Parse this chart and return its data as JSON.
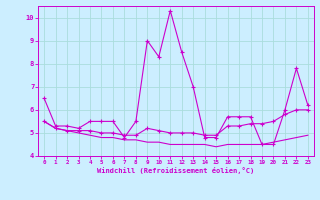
{
  "xlabel": "Windchill (Refroidissement éolien,°C)",
  "background_color": "#cceeff",
  "grid_color": "#aadddd",
  "line_color": "#cc00cc",
  "xlim": [
    -0.5,
    23.5
  ],
  "ylim": [
    4.0,
    10.5
  ],
  "yticks": [
    4,
    5,
    6,
    7,
    8,
    9,
    10
  ],
  "xticks": [
    0,
    1,
    2,
    3,
    4,
    5,
    6,
    7,
    8,
    9,
    10,
    11,
    12,
    13,
    14,
    15,
    16,
    17,
    18,
    19,
    20,
    21,
    22,
    23
  ],
  "series1_x": [
    0,
    1,
    2,
    3,
    4,
    5,
    6,
    7,
    8,
    9,
    10,
    11,
    12,
    13,
    14,
    15,
    16,
    17,
    18,
    19,
    20,
    21,
    22,
    23
  ],
  "series1_y": [
    6.5,
    5.3,
    5.3,
    5.2,
    5.5,
    5.5,
    5.5,
    4.8,
    5.5,
    9.0,
    8.3,
    10.3,
    8.5,
    7.0,
    4.8,
    4.8,
    5.7,
    5.7,
    5.7,
    4.5,
    4.5,
    6.0,
    7.8,
    6.2
  ],
  "series2_x": [
    0,
    1,
    2,
    3,
    4,
    5,
    6,
    7,
    8,
    9,
    10,
    11,
    12,
    13,
    14,
    15,
    16,
    17,
    18,
    19,
    20,
    21,
    22,
    23
  ],
  "series2_y": [
    5.5,
    5.2,
    5.1,
    5.1,
    5.1,
    5.0,
    5.0,
    4.9,
    4.9,
    5.2,
    5.1,
    5.0,
    5.0,
    5.0,
    4.9,
    4.9,
    5.3,
    5.3,
    5.4,
    5.4,
    5.5,
    5.8,
    6.0,
    6.0
  ],
  "series3_x": [
    0,
    1,
    2,
    3,
    4,
    5,
    6,
    7,
    8,
    9,
    10,
    11,
    12,
    13,
    14,
    15,
    16,
    17,
    18,
    19,
    20,
    21,
    22,
    23
  ],
  "series3_y": [
    5.5,
    5.2,
    5.1,
    5.0,
    4.9,
    4.8,
    4.8,
    4.7,
    4.7,
    4.6,
    4.6,
    4.5,
    4.5,
    4.5,
    4.5,
    4.4,
    4.5,
    4.5,
    4.5,
    4.5,
    4.6,
    4.7,
    4.8,
    4.9
  ]
}
